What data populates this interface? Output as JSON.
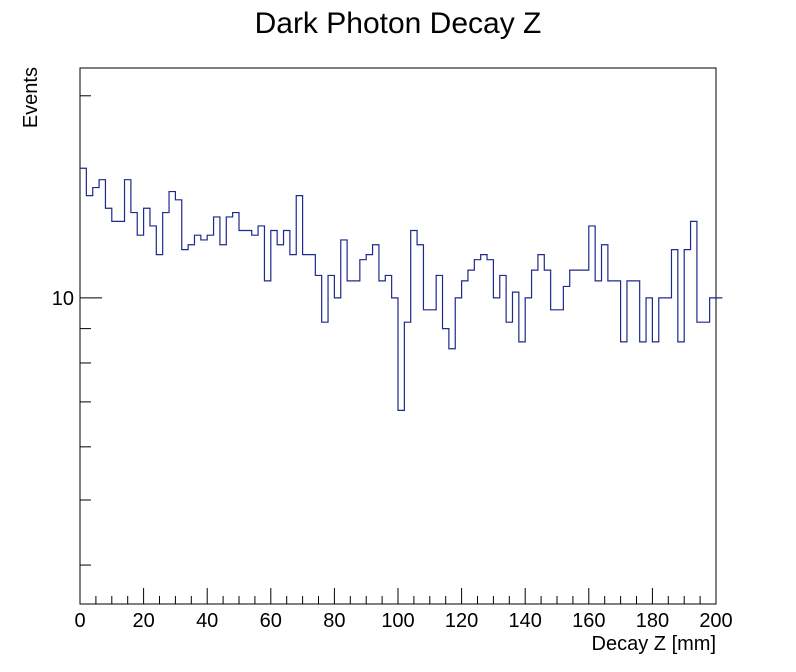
{
  "chart_data": {
    "type": "histogram",
    "title": "Dark Photon Decay Z",
    "xlabel": "Decay Z [mm]",
    "ylabel": "Events",
    "xlim": [
      0,
      200
    ],
    "ylim": [
      3.5,
      22
    ],
    "y_scale": "log",
    "bin_width": 2,
    "x_ticks": [
      0,
      20,
      40,
      60,
      80,
      100,
      120,
      140,
      160,
      180,
      200
    ],
    "y_tick_labels": [
      {
        "value": 10,
        "label": "10"
      }
    ],
    "grid": false,
    "line_color": "#1c2a8c",
    "series": [
      {
        "values": [
          15.6,
          14.2,
          14.6,
          15.0,
          13.6,
          13.0,
          13.0,
          15.0,
          13.4,
          12.4,
          13.6,
          12.8,
          11.6,
          13.4,
          14.4,
          14.0,
          11.8,
          12.0,
          12.4,
          12.2,
          12.4,
          13.2,
          12.0,
          13.2,
          13.4,
          12.6,
          12.6,
          12.4,
          12.8,
          10.6,
          12.6,
          12.0,
          12.6,
          11.6,
          14.2,
          11.6,
          11.6,
          10.8,
          9.2,
          10.8,
          10.0,
          12.2,
          10.6,
          10.6,
          11.4,
          11.6,
          12.0,
          10.6,
          10.8,
          10.0,
          6.8,
          9.2,
          12.6,
          12.0,
          9.6,
          9.6,
          10.8,
          9.0,
          8.4,
          10.0,
          10.6,
          11.0,
          11.4,
          11.6,
          11.4,
          10.0,
          10.8,
          9.2,
          10.2,
          8.6,
          10.0,
          11.0,
          11.6,
          11.0,
          9.6,
          9.6,
          10.4,
          11.0,
          11.0,
          11.0,
          12.8,
          10.6,
          12.0,
          10.6,
          10.6,
          8.6,
          10.6,
          10.6,
          8.6,
          10.0,
          8.6,
          10.0,
          10.0,
          11.8,
          8.6,
          11.8,
          13.0,
          9.2,
          9.2,
          10.0,
          10.0
        ]
      }
    ]
  }
}
